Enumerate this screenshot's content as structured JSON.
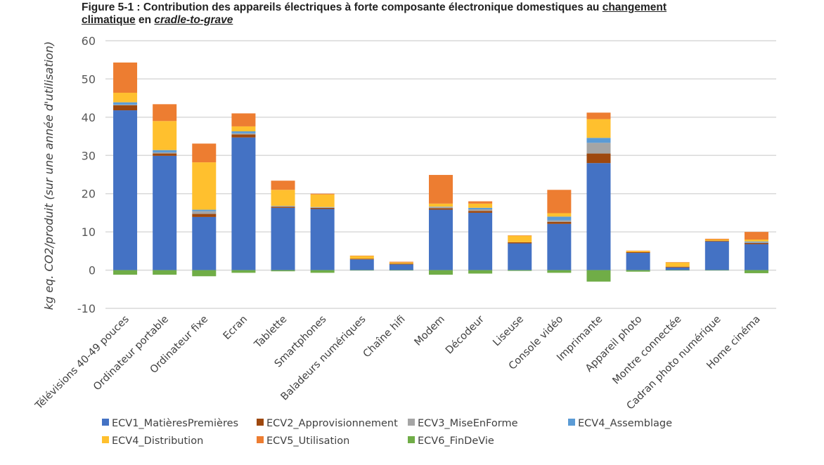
{
  "chart_data": {
    "type": "bar",
    "stacked": true,
    "title_parts": {
      "prefix": "Figure 5-1 : Contribution des appareils électriques à forte composante électronique domestiques au ",
      "underlined": "changement climatique",
      "mid": " en ",
      "italic_underlined": "cradle-to-grave"
    },
    "ylabel": "kg eq. CO2/produit (sur une année d'utilisation)",
    "xlabel": "",
    "ylim": [
      -10,
      60
    ],
    "yticks": [
      -10,
      0,
      10,
      20,
      30,
      40,
      50,
      60
    ],
    "grid": true,
    "legend_position": "bottom",
    "categories": [
      "Télévisions 40-49 pouces",
      "Ordinateur portable",
      "Ordinateur fixe",
      "Ecran",
      "Tablette",
      "Smartphones",
      "Baladeurs numériques",
      "Chaîne hifi",
      "Modem",
      "Décodeur",
      "Liseuse",
      "Console vidéo",
      "Imprimante",
      "Appareil photo",
      "Montre connectée",
      "Cadran photo numérique",
      "Home cinéma"
    ],
    "series": [
      {
        "name": "ECV1_MatièresPremières",
        "color": "#4472C4",
        "values": [
          41.8,
          29.9,
          13.9,
          34.7,
          16.3,
          16.0,
          2.8,
          1.5,
          15.8,
          15.0,
          7.0,
          12.1,
          28.0,
          4.5,
          0.7,
          7.5,
          6.8
        ]
      },
      {
        "name": "ECV2_Approvisionnement",
        "color": "#9E480E",
        "values": [
          1.3,
          0.6,
          0.8,
          0.8,
          0.3,
          0.3,
          0.2,
          0.2,
          0.4,
          0.5,
          0.3,
          0.5,
          2.5,
          0.2,
          0.2,
          0.2,
          0.3
        ]
      },
      {
        "name": "ECV3_MiseEnForme",
        "color": "#A5A5A5",
        "values": [
          0.2,
          0.3,
          0.7,
          0.3,
          0.1,
          0.1,
          0,
          0,
          0.3,
          0.4,
          0,
          0.4,
          2.8,
          0,
          0,
          0,
          0.2
        ]
      },
      {
        "name": "ECV4_Assemblage",
        "color": "#5B9BD5",
        "values": [
          0.6,
          0.6,
          0.4,
          0.5,
          0.1,
          0.1,
          0,
          0,
          0.1,
          0.4,
          0,
          1.0,
          1.3,
          0,
          0,
          0,
          0.2
        ]
      },
      {
        "name": "ECV4_Distribution",
        "color": "#FFC02E",
        "values": [
          2.5,
          7.6,
          12.4,
          1.3,
          4.2,
          3.3,
          0.7,
          0.3,
          0.8,
          1.1,
          1.7,
          0.9,
          4.9,
          0.3,
          1.1,
          0.3,
          0.5
        ]
      },
      {
        "name": "ECV5_Utilisation",
        "color": "#ED7D31",
        "values": [
          7.9,
          4.4,
          4.9,
          3.4,
          2.4,
          0.2,
          0.1,
          0.2,
          7.5,
          0.6,
          0.1,
          6.1,
          1.7,
          0.1,
          0.1,
          0.2,
          2.0
        ]
      },
      {
        "name": "ECV6_FinDeVie",
        "color": "#70AD47",
        "values": [
          -1.2,
          -1.2,
          -1.6,
          -0.7,
          -0.3,
          -0.7,
          -0.1,
          -0.1,
          -1.2,
          -0.9,
          -0.2,
          -0.7,
          -3.0,
          -0.4,
          -0.1,
          -0.1,
          -0.8
        ]
      }
    ]
  }
}
